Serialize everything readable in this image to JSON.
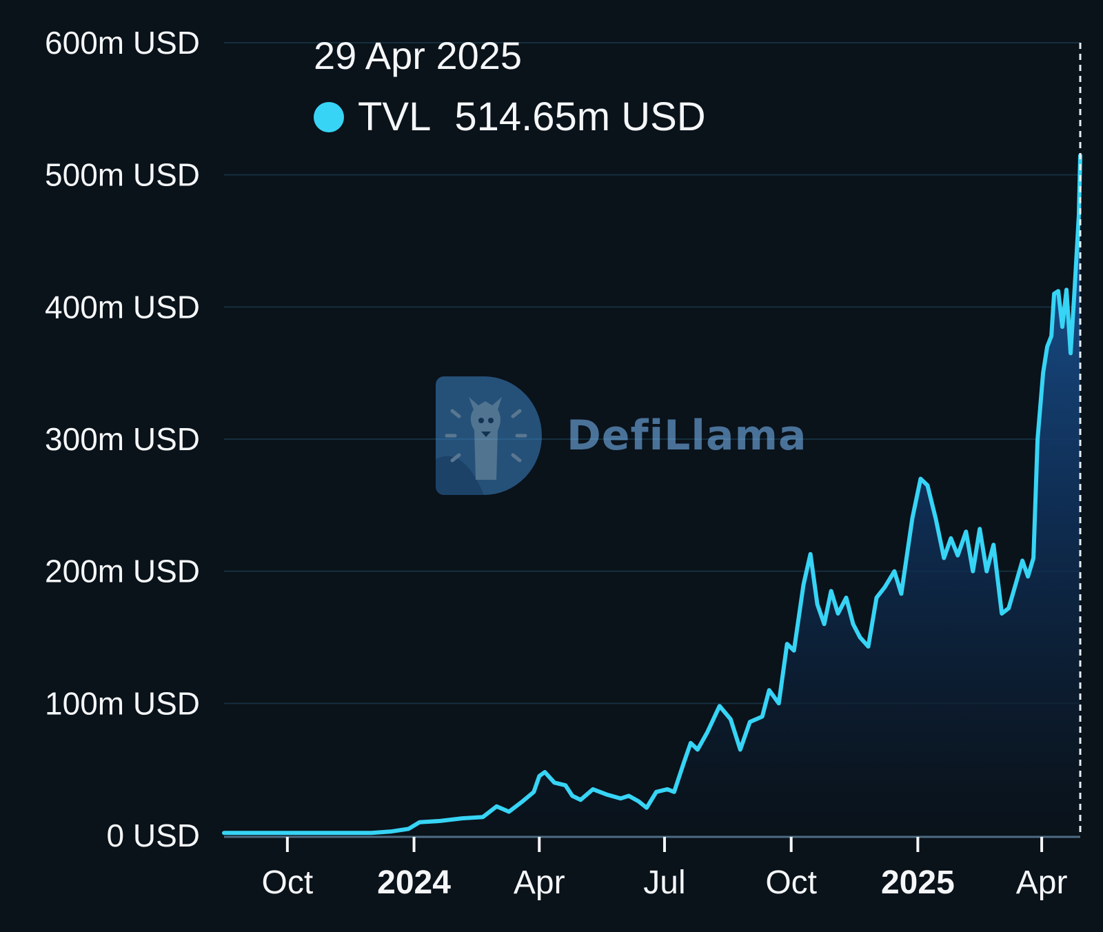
{
  "tooltip": {
    "date": "29 Apr 2025",
    "series": "TVL",
    "value": "514.65m USD",
    "color": "#37d4f5"
  },
  "watermark": {
    "text": "DefiLlama"
  },
  "colors": {
    "line": "#37d4f5",
    "background": "#0a121a",
    "grid": "#16303e",
    "text": "#f4f6f8"
  },
  "chart_data": {
    "type": "area",
    "title": "",
    "xlabel": "",
    "ylabel": "",
    "y_unit": "m USD",
    "ylim": [
      0,
      600
    ],
    "grid": true,
    "y_ticks": [
      {
        "value": 0,
        "label": "0 USD"
      },
      {
        "value": 100,
        "label": "100m USD"
      },
      {
        "value": 200,
        "label": "200m USD"
      },
      {
        "value": 300,
        "label": "300m USD"
      },
      {
        "value": 400,
        "label": "400m USD"
      },
      {
        "value": 500,
        "label": "500m USD"
      },
      {
        "value": 600,
        "label": "600m USD"
      }
    ],
    "x_ticks": [
      {
        "date": "2023-10-01",
        "label": "Oct",
        "bold": false
      },
      {
        "date": "2024-01-01",
        "label": "2024",
        "bold": true
      },
      {
        "date": "2024-04-01",
        "label": "Apr",
        "bold": false
      },
      {
        "date": "2024-07-01",
        "label": "Jul",
        "bold": false
      },
      {
        "date": "2024-10-01",
        "label": "Oct",
        "bold": false
      },
      {
        "date": "2025-01-01",
        "label": "2025",
        "bold": true
      },
      {
        "date": "2025-04-01",
        "label": "Apr",
        "bold": false
      }
    ],
    "xlim": [
      "2023-08-16",
      "2025-04-29"
    ],
    "series": [
      {
        "name": "TVL",
        "points": [
          [
            "2023-08-16",
            2
          ],
          [
            "2023-10-01",
            2
          ],
          [
            "2023-12-01",
            2
          ],
          [
            "2023-12-15",
            3
          ],
          [
            "2023-12-28",
            5
          ],
          [
            "2024-01-05",
            10
          ],
          [
            "2024-01-20",
            11
          ],
          [
            "2024-02-05",
            13
          ],
          [
            "2024-02-20",
            14
          ],
          [
            "2024-03-01",
            22
          ],
          [
            "2024-03-10",
            18
          ],
          [
            "2024-03-20",
            26
          ],
          [
            "2024-03-28",
            33
          ],
          [
            "2024-04-01",
            45
          ],
          [
            "2024-04-05",
            48
          ],
          [
            "2024-04-12",
            40
          ],
          [
            "2024-04-20",
            38
          ],
          [
            "2024-04-25",
            30
          ],
          [
            "2024-05-01",
            27
          ],
          [
            "2024-05-10",
            35
          ],
          [
            "2024-05-20",
            31
          ],
          [
            "2024-05-30",
            28
          ],
          [
            "2024-06-05",
            30
          ],
          [
            "2024-06-12",
            26
          ],
          [
            "2024-06-18",
            21
          ],
          [
            "2024-06-25",
            33
          ],
          [
            "2024-07-03",
            35
          ],
          [
            "2024-07-08",
            33
          ],
          [
            "2024-07-15",
            55
          ],
          [
            "2024-07-20",
            70
          ],
          [
            "2024-07-25",
            65
          ],
          [
            "2024-08-01",
            78
          ],
          [
            "2024-08-10",
            98
          ],
          [
            "2024-08-18",
            88
          ],
          [
            "2024-08-25",
            65
          ],
          [
            "2024-09-01",
            86
          ],
          [
            "2024-09-10",
            90
          ],
          [
            "2024-09-15",
            110
          ],
          [
            "2024-09-22",
            100
          ],
          [
            "2024-09-28",
            145
          ],
          [
            "2024-10-03",
            140
          ],
          [
            "2024-10-10",
            190
          ],
          [
            "2024-10-15",
            213
          ],
          [
            "2024-10-20",
            175
          ],
          [
            "2024-10-25",
            160
          ],
          [
            "2024-10-30",
            185
          ],
          [
            "2024-11-04",
            168
          ],
          [
            "2024-11-10",
            180
          ],
          [
            "2024-11-15",
            160
          ],
          [
            "2024-11-20",
            150
          ],
          [
            "2024-11-26",
            143
          ],
          [
            "2024-12-02",
            180
          ],
          [
            "2024-12-08",
            188
          ],
          [
            "2024-12-15",
            200
          ],
          [
            "2024-12-20",
            183
          ],
          [
            "2024-12-28",
            240
          ],
          [
            "2025-01-03",
            270
          ],
          [
            "2025-01-08",
            265
          ],
          [
            "2025-01-14",
            240
          ],
          [
            "2025-01-20",
            210
          ],
          [
            "2025-01-25",
            225
          ],
          [
            "2025-01-30",
            212
          ],
          [
            "2025-02-05",
            230
          ],
          [
            "2025-02-10",
            200
          ],
          [
            "2025-02-15",
            232
          ],
          [
            "2025-02-20",
            200
          ],
          [
            "2025-02-25",
            220
          ],
          [
            "2025-03-03",
            168
          ],
          [
            "2025-03-08",
            172
          ],
          [
            "2025-03-13",
            190
          ],
          [
            "2025-03-18",
            208
          ],
          [
            "2025-03-22",
            196
          ],
          [
            "2025-03-26",
            210
          ],
          [
            "2025-03-29",
            300
          ],
          [
            "2025-04-02",
            350
          ],
          [
            "2025-04-05",
            370
          ],
          [
            "2025-04-08",
            378
          ],
          [
            "2025-04-10",
            410
          ],
          [
            "2025-04-13",
            412
          ],
          [
            "2025-04-16",
            385
          ],
          [
            "2025-04-19",
            413
          ],
          [
            "2025-04-22",
            365
          ],
          [
            "2025-04-25",
            415
          ],
          [
            "2025-04-28",
            470
          ],
          [
            "2025-04-29",
            514.65
          ]
        ]
      }
    ]
  }
}
